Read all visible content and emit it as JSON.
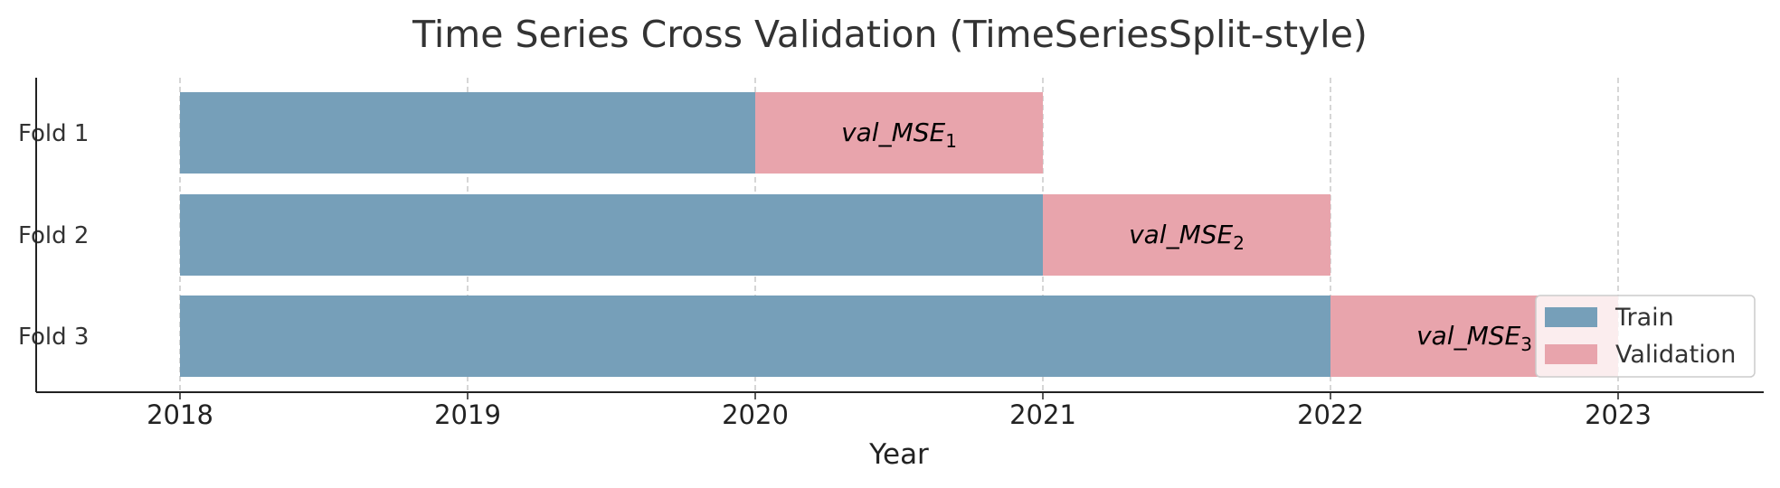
{
  "chart_data": {
    "type": "gantt",
    "title": "Time Series Cross Validation (TimeSeriesSplit-style)",
    "xlabel": "Year",
    "ylabel": "",
    "xlim": [
      2017.5,
      2023.5
    ],
    "xticks": [
      "2018",
      "2019",
      "2020",
      "2021",
      "2022",
      "2023"
    ],
    "grid": "vertical-dashed",
    "folds": [
      {
        "name": "Fold 1",
        "train": [
          2018,
          2020
        ],
        "validation": [
          2020,
          2021
        ],
        "val_label": "val_MSE",
        "val_sub": "1"
      },
      {
        "name": "Fold 2",
        "train": [
          2018,
          2021
        ],
        "validation": [
          2021,
          2022
        ],
        "val_label": "val_MSE",
        "val_sub": "2"
      },
      {
        "name": "Fold 3",
        "train": [
          2018,
          2022
        ],
        "validation": [
          2022,
          2023
        ],
        "val_label": "val_MSE",
        "val_sub": "3"
      }
    ],
    "legend": {
      "placement": "bottom-right",
      "entries": [
        {
          "label": "Train",
          "color": "#769fb9"
        },
        {
          "label": "Validation",
          "color": "#e8a4ac"
        }
      ]
    },
    "colors": {
      "train": "#769fb9",
      "validation": "#e8a4ac"
    }
  }
}
